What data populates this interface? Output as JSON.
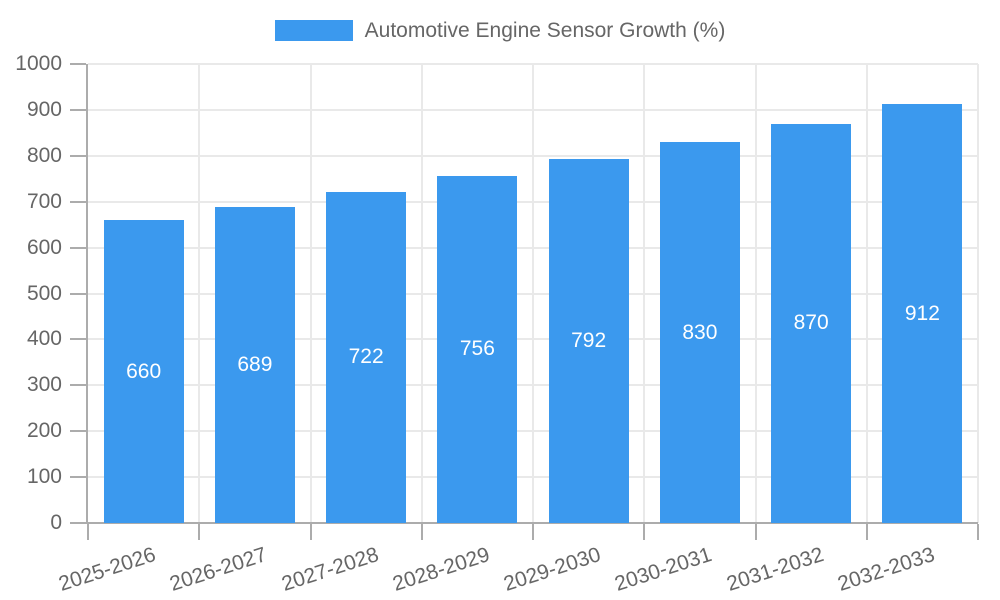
{
  "chart_data": {
    "type": "bar",
    "title": "",
    "legend": "Automotive Engine Sensor Growth (%)",
    "legend_position": "top",
    "categories": [
      "2025-2026",
      "2026-2027",
      "2027-2028",
      "2028-2029",
      "2029-2030",
      "2030-2031",
      "2031-2032",
      "2032-2033"
    ],
    "series": [
      {
        "name": "Automotive Engine Sensor Growth (%)",
        "values": [
          660,
          689,
          722,
          756,
          792,
          830,
          870,
          912
        ]
      }
    ],
    "bar_value_labels": [
      "660",
      "689",
      "722",
      "756",
      "792",
      "830",
      "870",
      "912"
    ],
    "xlabel": "",
    "ylabel": "",
    "ylim": [
      0,
      1000
    ],
    "yticks": [
      0,
      100,
      200,
      300,
      400,
      500,
      600,
      700,
      800,
      900,
      1000
    ],
    "grid": true,
    "colors": {
      "bar": "#3B99EE",
      "bar_value_text": "#ffffff",
      "axis_text": "#666666",
      "grid_line": "#e9e9e9",
      "axis_line": "#acacac",
      "background": "#ffffff"
    }
  }
}
